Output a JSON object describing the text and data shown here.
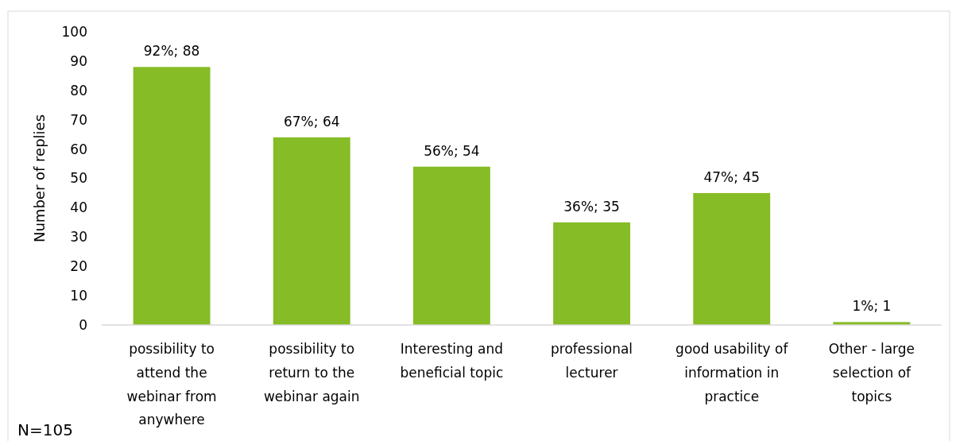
{
  "chart_data": {
    "type": "bar",
    "ylabel": "Number of replies",
    "categories": [
      "possibility to attend the webinar from anywhere",
      "possibility to return to the webinar again",
      "Interesting and beneficial topic",
      "professional lecturer",
      "good usability of information in practice",
      "Other - large selection of topics"
    ],
    "values": [
      88,
      64,
      54,
      35,
      45,
      1
    ],
    "color": "#86bc25",
    "value_labels": [
      "92%; 88",
      "67%; 64",
      "56%; 54",
      "36%; 35",
      "47%; 45",
      "1%; 1"
    ],
    "ylim": [
      0,
      100
    ],
    "yticks": [
      0,
      10,
      20,
      30,
      40,
      50,
      60,
      70,
      80,
      90,
      100
    ],
    "grid": false,
    "annotations": [
      "N=105"
    ]
  }
}
